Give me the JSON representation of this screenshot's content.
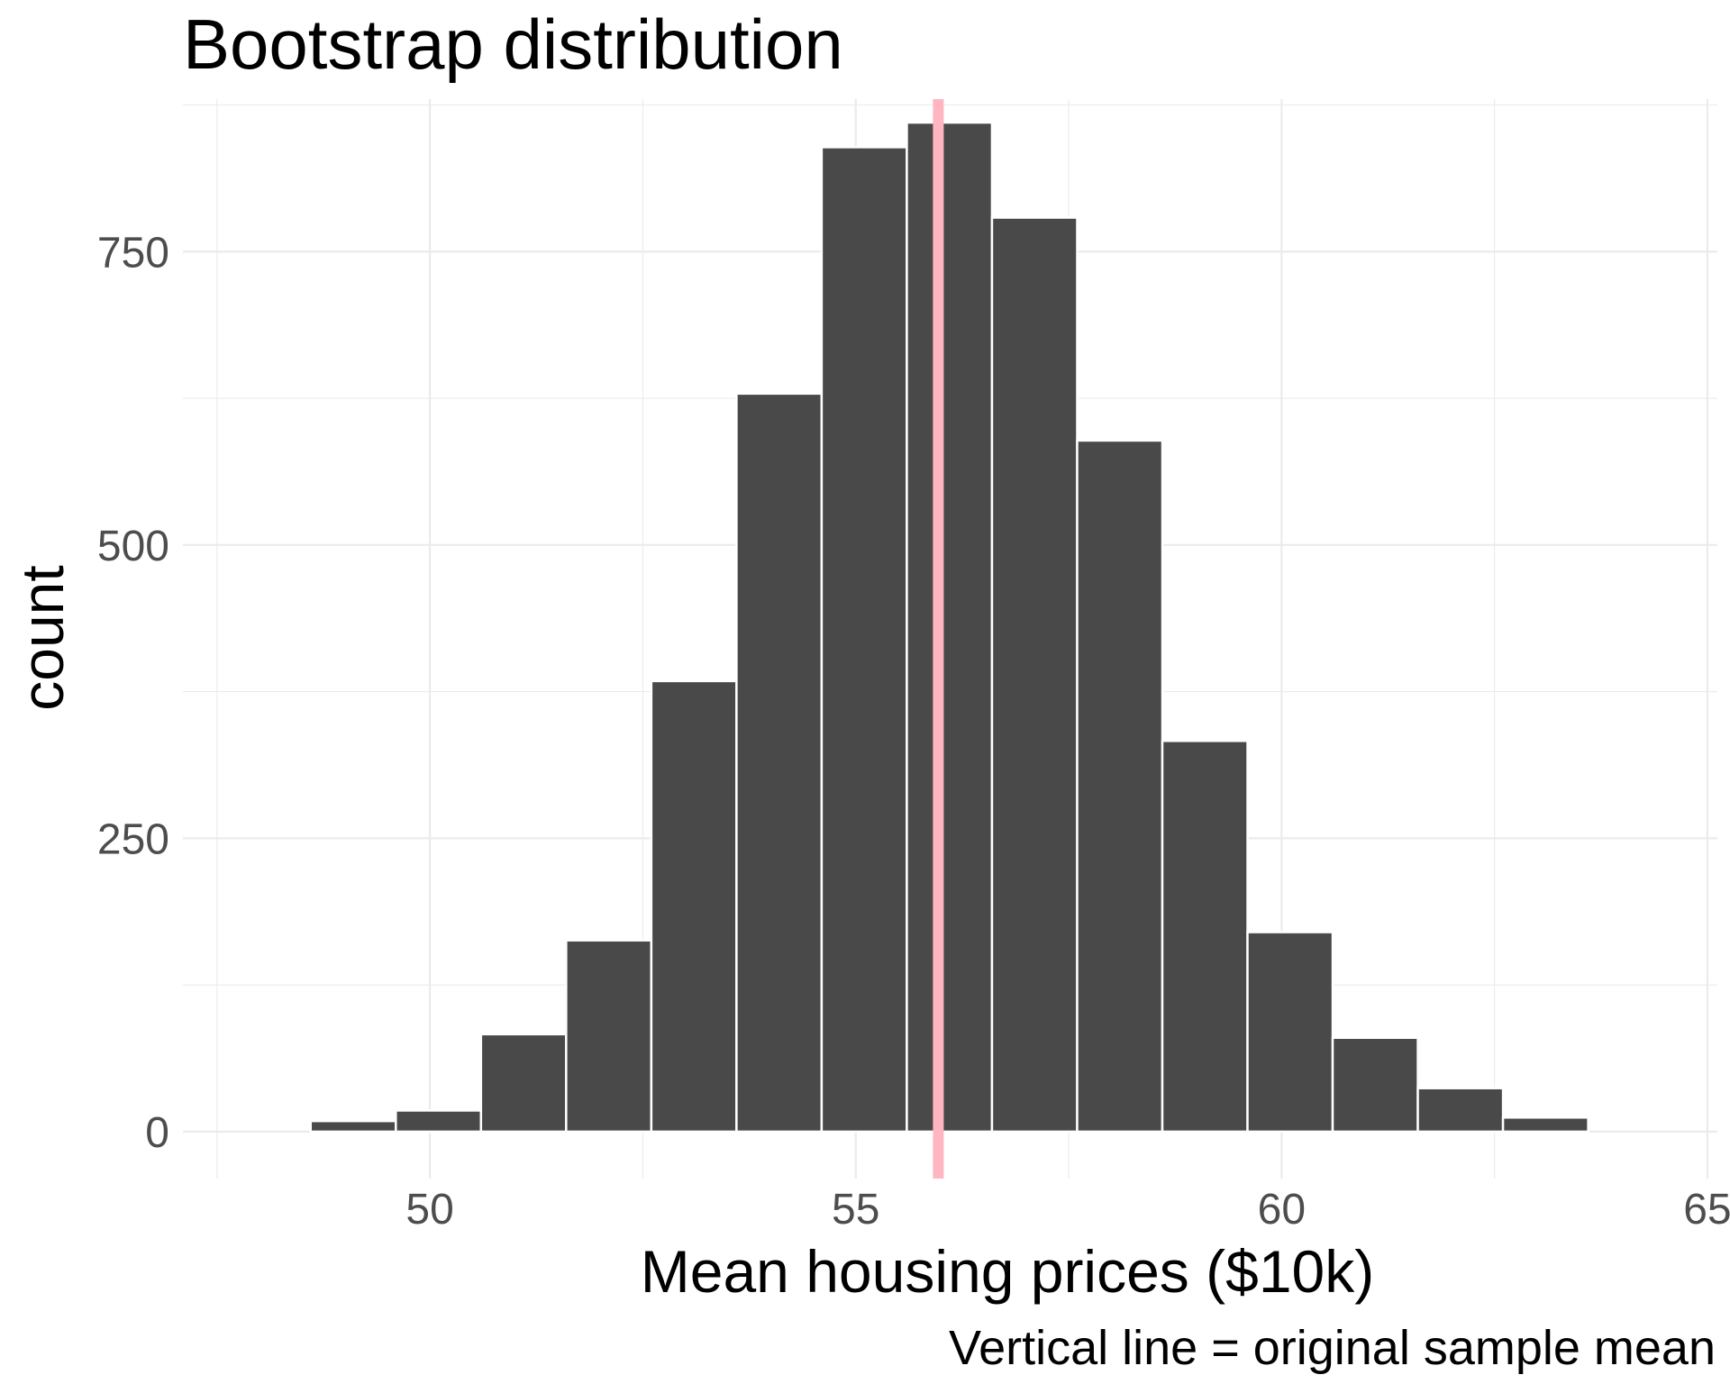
{
  "chart_data": {
    "type": "bar",
    "title": "Bootstrap distribution",
    "xlabel": "Mean housing prices ($10k)",
    "ylabel": "count",
    "caption": "Vertical line = original sample mean",
    "xlim": [
      47.1,
      65.0
    ],
    "ylim": [
      -40,
      880
    ],
    "x_ticks": [
      50,
      55,
      60,
      65
    ],
    "x_tick_labels": [
      "50",
      "55",
      "60",
      "65"
    ],
    "y_ticks": [
      0,
      250,
      500,
      750
    ],
    "y_tick_labels": [
      "0",
      "250",
      "500",
      "750"
    ],
    "bin_width": 1,
    "bins": [
      {
        "xmin": 48.6,
        "xmax": 49.6,
        "count": 9
      },
      {
        "xmin": 49.6,
        "xmax": 50.6,
        "count": 18
      },
      {
        "xmin": 50.6,
        "xmax": 51.6,
        "count": 83
      },
      {
        "xmin": 51.6,
        "xmax": 52.6,
        "count": 163
      },
      {
        "xmin": 52.6,
        "xmax": 53.6,
        "count": 384
      },
      {
        "xmin": 53.6,
        "xmax": 54.6,
        "count": 629
      },
      {
        "xmin": 54.6,
        "xmax": 55.6,
        "count": 839
      },
      {
        "xmin": 55.6,
        "xmax": 56.6,
        "count": 860
      },
      {
        "xmin": 56.6,
        "xmax": 57.6,
        "count": 779
      },
      {
        "xmin": 57.6,
        "xmax": 58.6,
        "count": 589
      },
      {
        "xmin": 58.6,
        "xmax": 59.6,
        "count": 333
      },
      {
        "xmin": 59.6,
        "xmax": 60.6,
        "count": 170
      },
      {
        "xmin": 60.6,
        "xmax": 61.6,
        "count": 80
      },
      {
        "xmin": 61.6,
        "xmax": 62.6,
        "count": 37
      },
      {
        "xmin": 62.6,
        "xmax": 63.6,
        "count": 12
      }
    ],
    "vertical_line": {
      "x": 55.97,
      "color": "#ffb6c1"
    },
    "bar_color": "#494949",
    "grid": true,
    "legend": "none"
  }
}
